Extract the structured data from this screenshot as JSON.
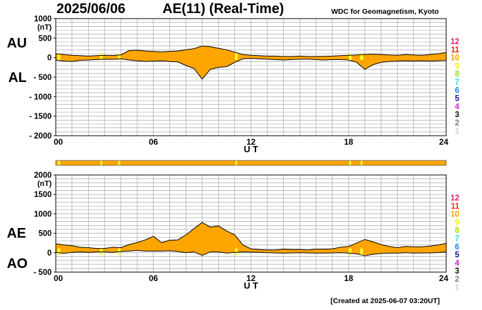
{
  "header": {
    "date": "2025/06/06",
    "title": "AE(11) (Real-Time)",
    "source": "WDC for Geomagnetism, Kyoto"
  },
  "footer": "[Created at 2025-06-07 03:20UT]",
  "colors": {
    "fill": "#ffa500",
    "highlight": "#ffff33",
    "grid": "#999999",
    "outline": "#000000"
  },
  "chart_data": [
    {
      "type": "area",
      "series_labels": [
        "AU",
        "AL"
      ],
      "unit_label": "(nT)",
      "xlabel": "U T",
      "xlim": [
        0,
        24
      ],
      "ylim": [
        -2000,
        1000
      ],
      "ytick_values": [
        1000,
        500,
        0,
        -500,
        -1000,
        -1500,
        -2000
      ],
      "ytick_labels": [
        "1000",
        "500",
        "0",
        "- 500",
        "- 1000",
        "- 1500",
        "- 2000"
      ],
      "xtick_values": [
        0,
        6,
        12,
        18,
        24
      ],
      "xtick_labels": [
        "00",
        "06",
        "12",
        "18",
        "24"
      ],
      "x": [
        0,
        0.5,
        1,
        1.5,
        2,
        2.5,
        3,
        3.5,
        4,
        4.5,
        5,
        5.5,
        6,
        6.5,
        7,
        7.5,
        8,
        8.5,
        9,
        9.5,
        10,
        10.5,
        11,
        11.5,
        12,
        12.5,
        13,
        13.5,
        14,
        14.5,
        15,
        15.5,
        16,
        16.5,
        17,
        17.5,
        18,
        18.5,
        19,
        19.5,
        20,
        20.5,
        21,
        21.5,
        22,
        22.5,
        23,
        23.5,
        24
      ],
      "upper": [
        100,
        80,
        60,
        50,
        40,
        50,
        60,
        55,
        70,
        180,
        190,
        170,
        160,
        150,
        160,
        170,
        200,
        230,
        300,
        280,
        240,
        200,
        140,
        80,
        60,
        50,
        40,
        40,
        30,
        30,
        40,
        30,
        30,
        35,
        40,
        50,
        60,
        70,
        80,
        90,
        80,
        70,
        60,
        80,
        70,
        60,
        80,
        100,
        130
      ],
      "lower": [
        -60,
        -90,
        -100,
        -70,
        -60,
        -50,
        -40,
        -45,
        -30,
        -60,
        -80,
        -100,
        -90,
        -80,
        -100,
        -110,
        -200,
        -280,
        -550,
        -300,
        -250,
        -230,
        -120,
        -30,
        -20,
        -30,
        -40,
        -50,
        -60,
        -50,
        -40,
        -40,
        -50,
        -60,
        -50,
        -50,
        -60,
        -120,
        -300,
        -180,
        -120,
        -100,
        -90,
        -80,
        -90,
        -80,
        -90,
        -80,
        -70
      ]
    },
    {
      "type": "area",
      "series_labels": [
        "AE",
        "AO"
      ],
      "unit_label": "(nT)",
      "xlabel": "U T",
      "xlim": [
        0,
        24
      ],
      "ylim": [
        -500,
        2000
      ],
      "ytick_values": [
        2000,
        1500,
        1000,
        500,
        0,
        -500
      ],
      "ytick_labels": [
        "2000",
        "1500",
        "1000",
        "500",
        "0",
        "- 500"
      ],
      "xtick_values": [
        0,
        6,
        12,
        18,
        24
      ],
      "xtick_labels": [
        "00",
        "06",
        "12",
        "18",
        "24"
      ],
      "x": [
        0,
        0.5,
        1,
        1.5,
        2,
        2.5,
        3,
        3.5,
        4,
        4.5,
        5,
        5.5,
        6,
        6.5,
        7,
        7.5,
        8,
        8.5,
        9,
        9.5,
        10,
        10.5,
        11,
        11.5,
        12,
        12.5,
        13,
        13.5,
        14,
        14.5,
        15,
        15.5,
        16,
        16.5,
        17,
        17.5,
        18,
        18.5,
        19,
        19.5,
        20,
        20.5,
        21,
        21.5,
        22,
        22.5,
        23,
        23.5,
        24
      ],
      "upper": [
        230,
        200,
        180,
        140,
        130,
        110,
        110,
        140,
        130,
        210,
        260,
        330,
        420,
        260,
        320,
        330,
        460,
        620,
        780,
        660,
        690,
        560,
        460,
        200,
        100,
        80,
        70,
        70,
        90,
        80,
        80,
        70,
        90,
        90,
        100,
        140,
        160,
        250,
        340,
        280,
        210,
        160,
        130,
        160,
        150,
        150,
        170,
        200,
        240
      ],
      "lower": [
        10,
        -20,
        10,
        20,
        10,
        20,
        20,
        10,
        30,
        40,
        60,
        40,
        40,
        40,
        50,
        30,
        0,
        20,
        -70,
        20,
        20,
        -10,
        10,
        20,
        15,
        10,
        0,
        -5,
        -10,
        -5,
        0,
        -5,
        -10,
        -10,
        -5,
        0,
        -10,
        -30,
        -80,
        -40,
        -20,
        -10,
        -10,
        0,
        -10,
        -5,
        -5,
        5,
        20
      ]
    }
  ],
  "station_bar": {
    "highlight_hours": [
      0.2,
      2.8,
      3.9,
      11.1,
      18.1,
      18.8
    ]
  },
  "station_count_labels": [
    "12",
    "11",
    "10",
    "9",
    "8",
    "7",
    "6",
    "5",
    "4",
    "3",
    "2",
    "1"
  ],
  "station_count_colors": [
    "#e0206a",
    "#ff2020",
    "#ffa500",
    "#f0f020",
    "#a0e020",
    "#20e0e0",
    "#2080ff",
    "#1010a0",
    "#d020d0",
    "#101010",
    "#808080",
    "#d0d0d0"
  ]
}
